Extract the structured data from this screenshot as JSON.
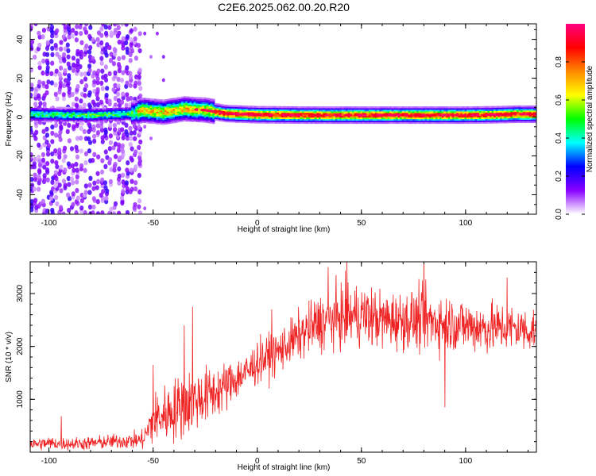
{
  "title": "C2E6.2025.062.00.20.R20",
  "chart_data": [
    {
      "type": "heatmap",
      "xlabel": "Height of straight line (km)",
      "ylabel": "Frequency (Hz)",
      "xlim": [
        -109,
        134
      ],
      "ylim": [
        -50,
        48
      ],
      "xticks": [
        -100,
        -50,
        0,
        50,
        100
      ],
      "yticks": [
        -40,
        -20,
        0,
        20,
        40
      ],
      "colorbar": {
        "label": "Normalized spectral amplitude",
        "range": [
          0.0,
          1.0
        ],
        "ticks": [
          0.0,
          0.2,
          0.4,
          0.6,
          0.8
        ],
        "tick_labels": [
          "0.0",
          "0.2",
          "0.4",
          "0.6",
          "0.8"
        ],
        "colors": [
          "#ffffff",
          "#8800ff",
          "#0000ff",
          "#00ffff",
          "#00ff00",
          "#ffff00",
          "#ff8800",
          "#ff0000",
          "#ff0080"
        ]
      },
      "ridge": {
        "description_values_hz": "dominant frequency track",
        "x": [
          -109,
          -95,
          -80,
          -60,
          -55,
          -45,
          -35,
          -25,
          -15,
          0,
          25,
          50,
          75,
          100,
          115,
          125,
          134
        ],
        "y": [
          1.5,
          1.2,
          1.0,
          1.8,
          3.5,
          2.5,
          4.2,
          3.6,
          1.8,
          1.2,
          1.0,
          1.0,
          1.0,
          1.0,
          1.2,
          1.5,
          1.4
        ]
      },
      "noise_region_x": [
        -109,
        -57
      ],
      "grid": false
    },
    {
      "type": "line",
      "xlabel": "Height of straight line (km)",
      "ylabel": "SNR (10 * v/v)",
      "xlim": [
        -109,
        134
      ],
      "ylim": [
        0,
        3600
      ],
      "xticks": [
        -100,
        -50,
        0,
        50,
        100
      ],
      "yticks": [
        1000,
        2000,
        3000
      ],
      "color": "#ee2222",
      "envelope_x": [
        -109,
        -100,
        -90,
        -80,
        -70,
        -60,
        -55,
        -50,
        -45,
        -40,
        -35,
        -30,
        -25,
        -20,
        -15,
        -10,
        -5,
        0,
        5,
        10,
        15,
        20,
        30,
        40,
        50,
        60,
        70,
        80,
        90,
        100,
        110,
        120,
        134
      ],
      "envelope_mean": [
        150,
        170,
        160,
        170,
        200,
        220,
        230,
        600,
        700,
        800,
        900,
        1000,
        1050,
        1150,
        1250,
        1400,
        1500,
        1700,
        1800,
        1900,
        2050,
        2200,
        2450,
        2550,
        2600,
        2500,
        2500,
        2500,
        2450,
        2400,
        2350,
        2350,
        2300
      ],
      "envelope_spread": [
        120,
        140,
        130,
        140,
        150,
        170,
        200,
        550,
        600,
        650,
        700,
        650,
        600,
        550,
        500,
        450,
        450,
        450,
        450,
        450,
        450,
        500,
        600,
        650,
        650,
        600,
        600,
        650,
        600,
        550,
        550,
        500,
        450
      ],
      "notable_peaks": [
        {
          "x": -94,
          "y": 680
        },
        {
          "x": -50,
          "y": 1650
        },
        {
          "x": -35,
          "y": 2400
        },
        {
          "x": -31,
          "y": 2750
        },
        {
          "x": 7,
          "y": 2700
        },
        {
          "x": 34,
          "y": 3500
        },
        {
          "x": 43,
          "y": 3650
        },
        {
          "x": 80,
          "y": 3700
        },
        {
          "x": 120,
          "y": 3300
        },
        {
          "x": 90,
          "y": 850
        }
      ],
      "grid": false
    }
  ]
}
